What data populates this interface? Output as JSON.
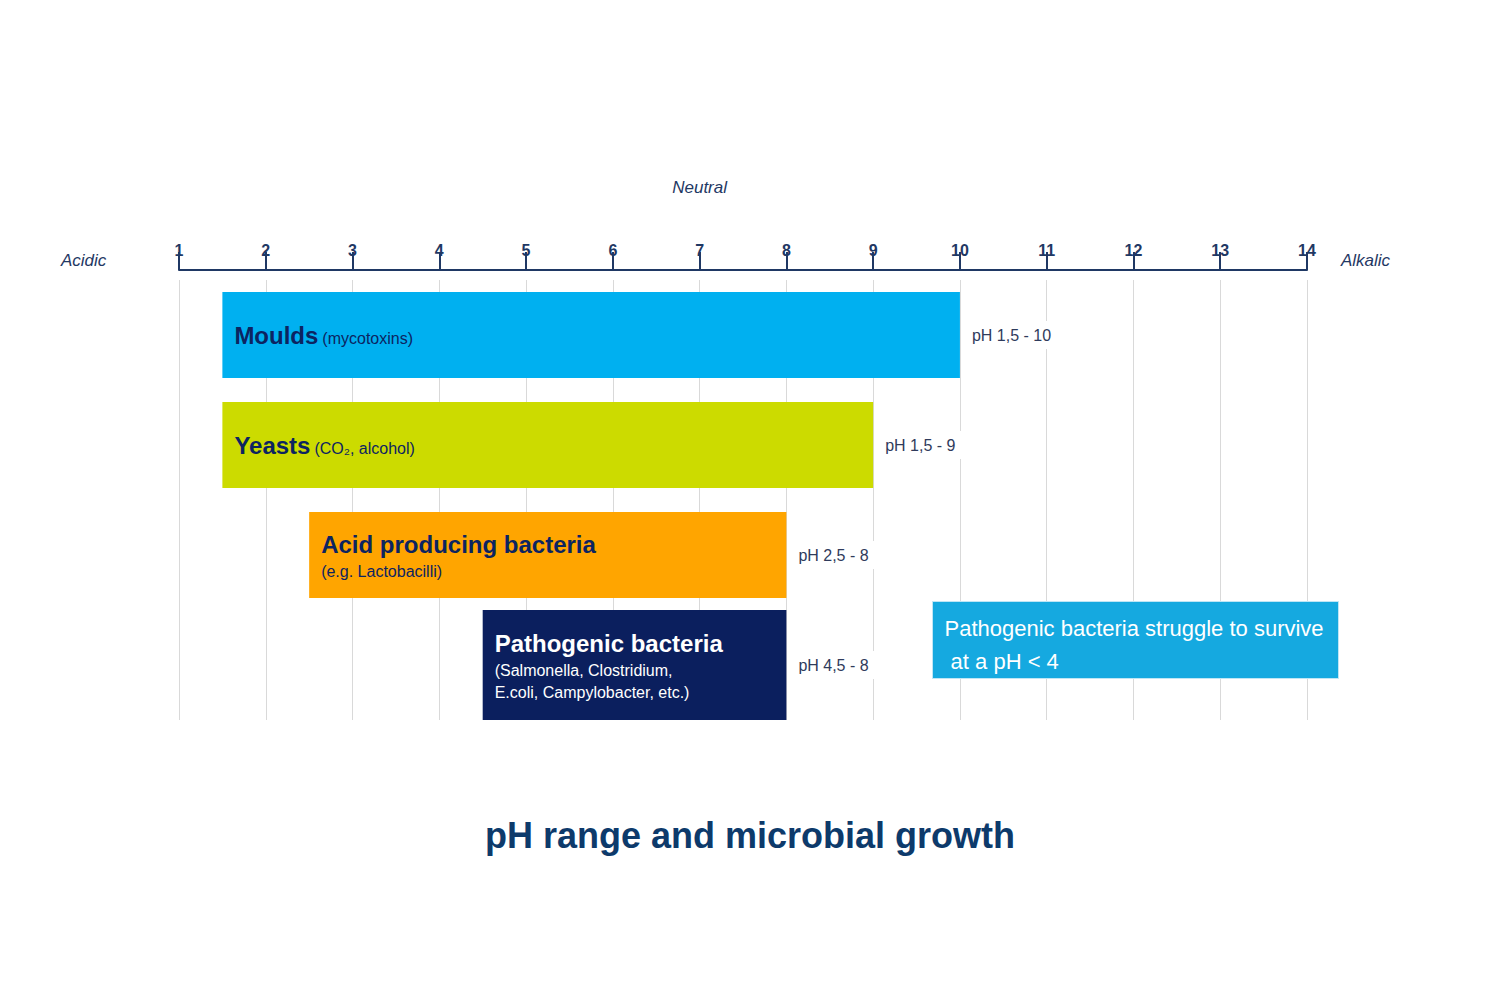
{
  "chart_data": {
    "type": "range_bar",
    "orientation": "horizontal",
    "title": "pH range and microbial growth",
    "categories": [
      "Moulds",
      "Yeasts",
      "Acid producing bacteria",
      "Pathogenic bacteria"
    ],
    "descriptions": [
      [
        "(mycotoxins)"
      ],
      [
        "(CO₂, alcohol)"
      ],
      [
        "(e.g. Lactobacilli)"
      ],
      [
        "(Salmonella, Clostridium,",
        "E.coli, Campylobacter, etc.)"
      ]
    ],
    "starts": [
      1.5,
      1.5,
      2.5,
      4.5
    ],
    "ends": [
      10,
      9,
      8,
      8
    ],
    "range_labels": [
      "pH 1,5 - 10",
      "pH 1,5 - 9",
      "pH 2,5 - 8",
      "pH 4,5 - 8"
    ],
    "colors": [
      "#00b0f0",
      "#ccdb00",
      "#ffa500",
      "#0b1f5e"
    ],
    "xlim": [
      1,
      14
    ],
    "xticks": [
      1,
      2,
      3,
      4,
      5,
      6,
      7,
      8,
      9,
      10,
      11,
      12,
      13,
      14
    ],
    "axis_ends": [
      "Acidic",
      "Alkalic"
    ],
    "annotations": [
      {
        "text": "Neutral",
        "x": 7
      }
    ],
    "note": "Pathogenic bacteria struggle to survive at a pH < 4",
    "grid": true,
    "tick_labels": "x"
  }
}
